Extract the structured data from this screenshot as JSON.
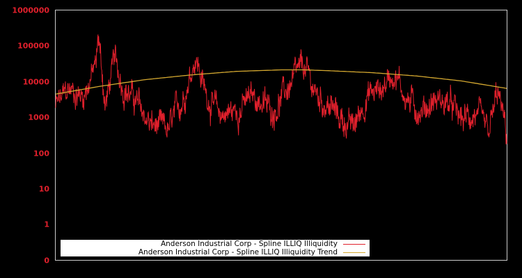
{
  "chart_data": {
    "type": "line",
    "title": "",
    "xlabel": "",
    "ylabel": "",
    "yscale": "log",
    "ylim": [
      0.1,
      1000000
    ],
    "y_tick_labels": [
      "1000000",
      "100000",
      "10000",
      "1000",
      "100",
      "10",
      "1",
      "0"
    ],
    "y_tick_values": [
      1000000,
      100000,
      10000,
      1000,
      100,
      10,
      1,
      0.1
    ],
    "x_tick_labels": [],
    "grid": false,
    "legend_position": "lower-left",
    "background": "#000000",
    "frame_color": "#cccccc",
    "tick_label_color": "#e0202c",
    "series": [
      {
        "name": "Anderson Industrial Corp - Spline ILLIQ Illiquidity",
        "color": "#e0202c",
        "description": "noisy daily illiquidity measure; approx range 150 to 220000",
        "x_fraction": [
          0.0,
          0.03,
          0.06,
          0.09,
          0.095,
          0.11,
          0.13,
          0.15,
          0.18,
          0.21,
          0.25,
          0.28,
          0.3,
          0.31,
          0.33,
          0.36,
          0.4,
          0.44,
          0.48,
          0.52,
          0.55,
          0.58,
          0.6,
          0.63,
          0.66,
          0.69,
          0.72,
          0.75,
          0.78,
          0.81,
          0.84,
          0.87,
          0.9,
          0.93,
          0.96,
          0.98,
          1.0
        ],
        "values": [
          2000,
          6000,
          4000,
          30000,
          200000,
          2000,
          40000,
          8000,
          2500,
          600,
          400,
          3000,
          20000,
          60000,
          6000,
          1200,
          1500,
          4000,
          1500,
          8000,
          25000,
          4000,
          2500,
          1000,
          500,
          4000,
          6000,
          20000,
          3000,
          1500,
          3000,
          2500,
          800,
          1200,
          300,
          5000,
          300
        ]
      },
      {
        "name": "Anderson Industrial Corp - Spline ILLIQ Illiquidity Trend",
        "color": "#d4a830",
        "description": "smooth concave trend",
        "x_fraction": [
          0.0,
          0.1,
          0.2,
          0.3,
          0.4,
          0.5,
          0.55,
          0.6,
          0.7,
          0.8,
          0.9,
          1.0
        ],
        "values": [
          4500,
          7500,
          11500,
          15500,
          19500,
          21500,
          21500,
          20500,
          18000,
          14500,
          10500,
          6500
        ]
      }
    ]
  },
  "legend": {
    "items": [
      {
        "label": "Anderson Industrial Corp - Spline ILLIQ Illiquidity",
        "color": "#e0202c"
      },
      {
        "label": "Anderson Industrial Corp - Spline ILLIQ Illiquidity Trend",
        "color": "#d4a830"
      }
    ]
  }
}
